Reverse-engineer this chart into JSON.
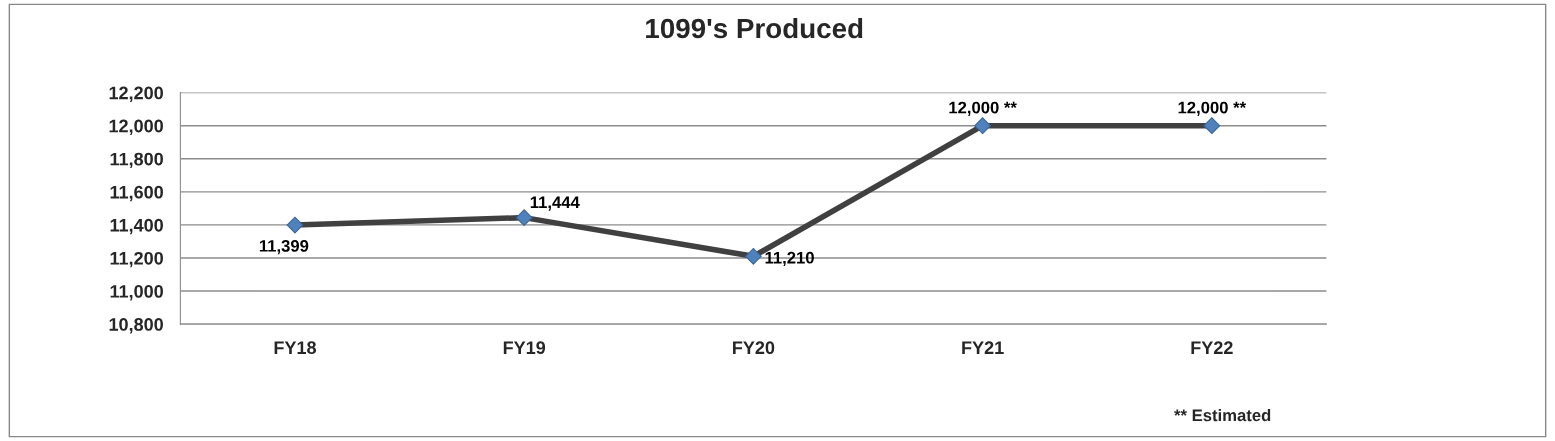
{
  "chart_data": {
    "type": "line",
    "title": "1099's Produced",
    "categories": [
      "FY18",
      "FY19",
      "FY20",
      "FY21",
      "FY22"
    ],
    "series": [
      {
        "color": "#404040",
        "values": [
          11399,
          11444,
          11210,
          12000,
          12000
        ],
        "value_labels": [
          "11,399",
          "11,444",
          "11,210",
          "12,000 **",
          "12,000 **"
        ]
      }
    ],
    "marker": "diamond",
    "line_style": "solid",
    "ylim": [
      10800,
      12200
    ],
    "yticks": [
      {
        "value": 10800,
        "label": "10,800"
      },
      {
        "value": 11000,
        "label": "11,000"
      },
      {
        "value": 11200,
        "label": "11,200"
      },
      {
        "value": 11400,
        "label": "11,400"
      },
      {
        "value": 11600,
        "label": "11,600"
      },
      {
        "value": 11800,
        "label": "11,800"
      },
      {
        "value": 12000,
        "label": "12,000"
      },
      {
        "value": 12200,
        "label": "12,200"
      }
    ],
    "grid": "y",
    "annotations": [
      "** Estimated"
    ]
  }
}
